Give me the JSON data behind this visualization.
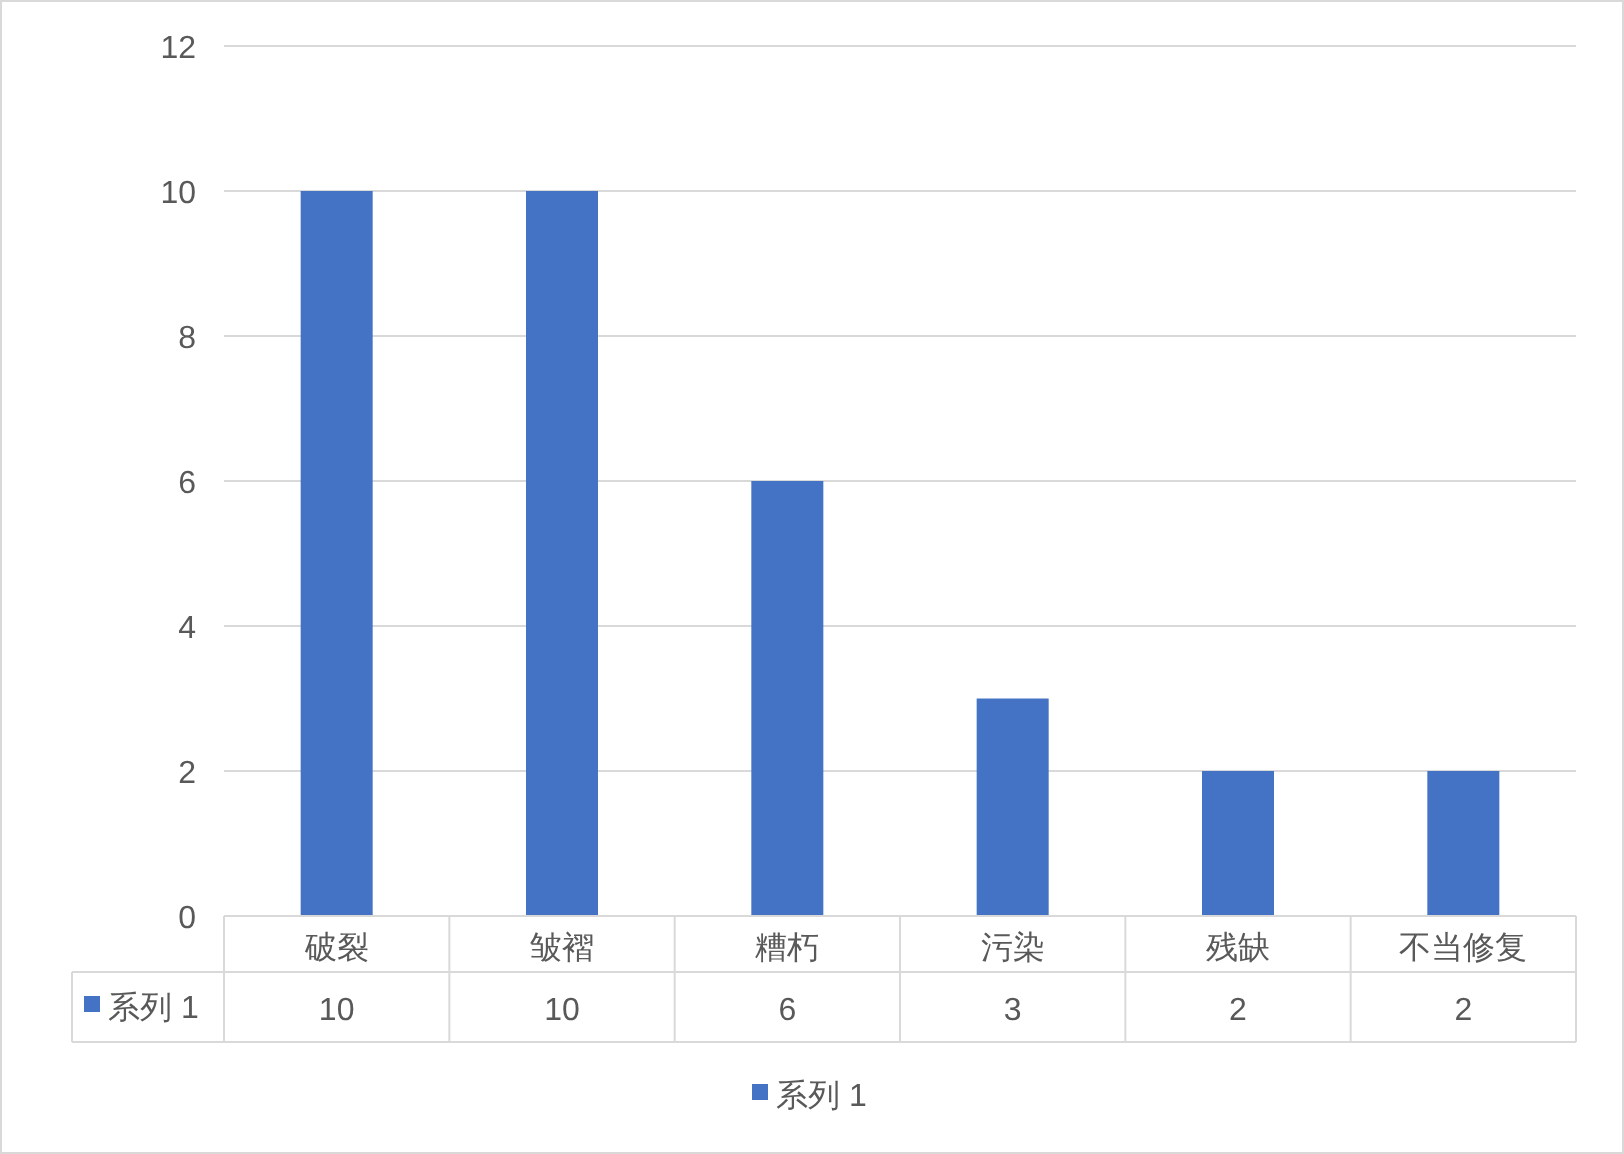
{
  "chart_data": {
    "type": "bar",
    "categories": [
      "破裂",
      "皱褶",
      "糟朽",
      "污染",
      "残缺",
      "不当修复"
    ],
    "series": [
      {
        "name": "系列 1",
        "color": "#4472c4",
        "values": [
          10,
          10,
          6,
          3,
          2,
          2
        ]
      }
    ],
    "ylim": [
      0,
      12
    ],
    "yticks": [
      0,
      2,
      4,
      6,
      8,
      10,
      12
    ],
    "grid": "y",
    "legend": "bottom",
    "data_labels": true
  }
}
